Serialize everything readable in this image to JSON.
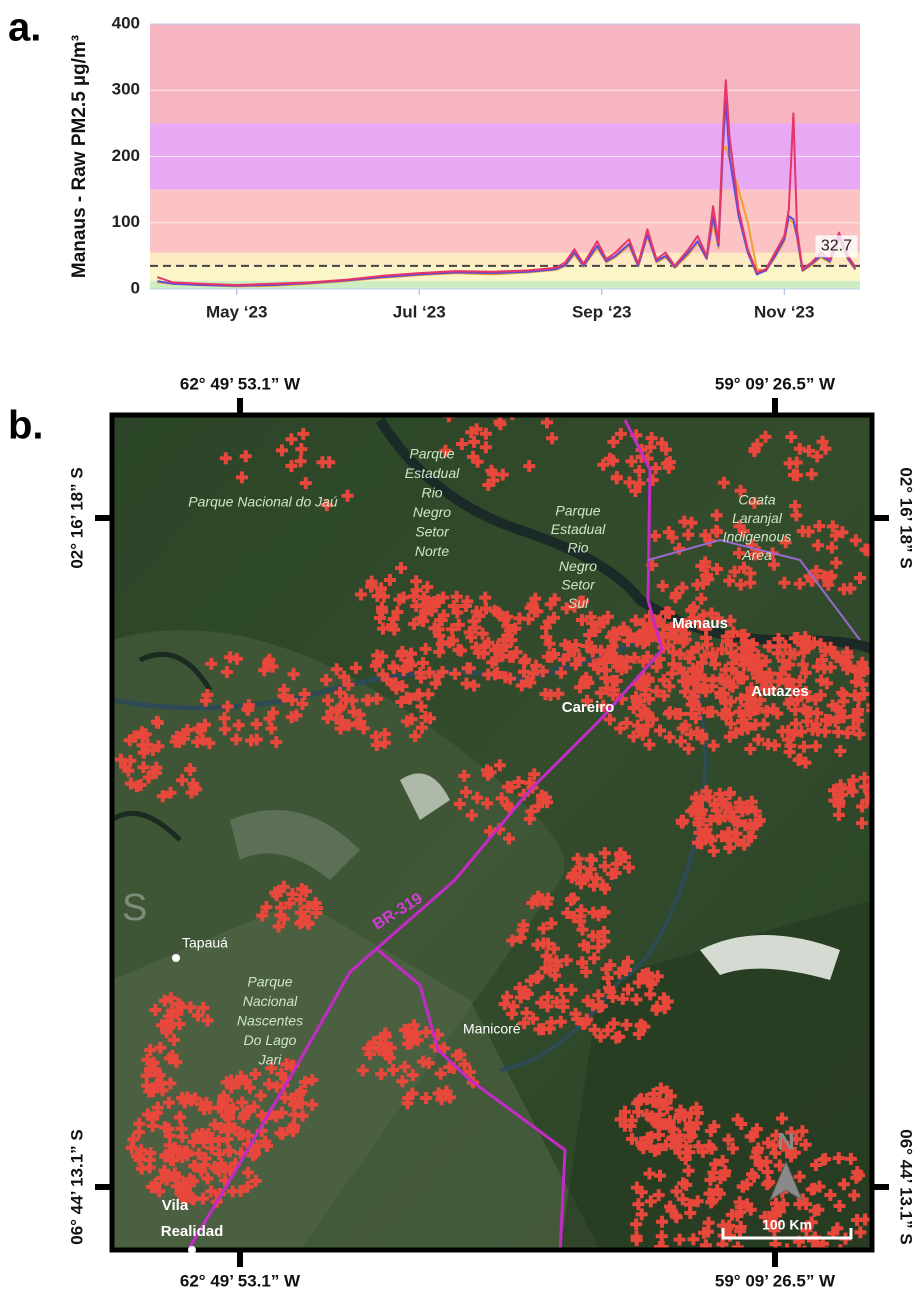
{
  "panel_labels": [
    "a.",
    "b."
  ],
  "chart_data": {
    "type": "line",
    "ylabel": "Manaus - Raw PM2.5 µg/m³",
    "x": [
      4.13,
      4.3,
      4.6,
      5.0,
      5.4,
      5.8,
      6.2,
      6.6,
      7.0,
      7.4,
      7.8,
      8.2,
      8.5,
      8.6,
      8.7,
      8.8,
      8.95,
      9.05,
      9.15,
      9.3,
      9.4,
      9.5,
      9.6,
      9.7,
      9.8,
      9.95,
      10.05,
      10.15,
      10.22,
      10.28,
      10.33,
      10.36,
      10.4,
      10.5,
      10.6,
      10.7,
      10.8,
      10.9,
      11.0,
      11.05,
      11.1,
      11.14,
      11.2,
      11.3,
      11.4,
      11.5,
      11.6,
      11.7,
      11.78
    ],
    "xlim": [
      4.05,
      11.83
    ],
    "xticks": [
      {
        "value": 5,
        "label": "May ‘23"
      },
      {
        "value": 7,
        "label": "Jul ‘23"
      },
      {
        "value": 9,
        "label": "Sep ‘23"
      },
      {
        "value": 11,
        "label": "Nov ‘23"
      }
    ],
    "ylim": [
      0,
      400
    ],
    "yticks": [
      0,
      100,
      200,
      300,
      400
    ],
    "grid": true,
    "bands": [
      {
        "from": 0,
        "to": 12,
        "color": "#cdeec4"
      },
      {
        "from": 12,
        "to": 35,
        "color": "#fbf6c8"
      },
      {
        "from": 35,
        "to": 55,
        "color": "#fde9c2"
      },
      {
        "from": 55,
        "to": 150,
        "color": "#fbc3c3"
      },
      {
        "from": 150,
        "to": 250,
        "color": "#e7a9f3"
      },
      {
        "from": 250,
        "to": 400,
        "color": "#f6b3c0"
      }
    ],
    "reference_line": 35,
    "last_value": 32.7,
    "series": [
      {
        "color": "#f0a030",
        "values": [
          10,
          8,
          6,
          4,
          5,
          8,
          12,
          17,
          21,
          24,
          22,
          25,
          29,
          35,
          52,
          34,
          62,
          40,
          48,
          65,
          34,
          80,
          40,
          48,
          32,
          52,
          70,
          45,
          100,
          62,
          210,
          215,
          195,
          150,
          100,
          30,
          27,
          48,
          72,
          105,
          100,
          78,
          27,
          36,
          48,
          40,
          75,
          44,
          29
        ]
      },
      {
        "color": "#5b4fd6",
        "values": [
          12,
          8,
          6,
          5,
          6,
          9,
          13,
          18,
          22,
          25,
          24,
          26,
          30,
          36,
          55,
          35,
          65,
          42,
          50,
          68,
          35,
          82,
          42,
          50,
          33,
          55,
          72,
          46,
          110,
          65,
          220,
          285,
          200,
          110,
          55,
          22,
          28,
          50,
          75,
          110,
          105,
          80,
          28,
          38,
          50,
          42,
          78,
          46,
          30
        ]
      },
      {
        "color": "#e8336b",
        "values": [
          18,
          10,
          8,
          6,
          8,
          10,
          14,
          20,
          24,
          27,
          26,
          28,
          32,
          40,
          60,
          38,
          72,
          45,
          55,
          75,
          38,
          90,
          45,
          55,
          35,
          60,
          80,
          50,
          125,
          70,
          240,
          315,
          230,
          120,
          60,
          25,
          30,
          55,
          80,
          120,
          265,
          90,
          30,
          40,
          55,
          45,
          85,
          50,
          32.7
        ]
      }
    ]
  },
  "map": {
    "coordinates": {
      "west": "62° 49’ 53.1” W",
      "east": "59° 09’ 26.5” W",
      "north": "02° 16’ 18” S",
      "south": "06° 44’ 13.1” S"
    },
    "places": {
      "jau": "Parque Nacional do Jaú",
      "rio_negro_norte": [
        "Parque",
        "Estadual",
        "Rio",
        "Negro",
        "Setor",
        "Norte"
      ],
      "rio_negro_sul": [
        "Parque",
        "Estadual",
        "Rio",
        "Negro",
        "Setor",
        "Sul"
      ],
      "manaus": "Manaus",
      "careiro": "Careiro",
      "autazes": "Autazes",
      "coata": [
        "Coata",
        "Laranjal",
        "Indigenous",
        "Area"
      ],
      "road": "BR-319",
      "tapaua": "Tapauá",
      "nascentes": [
        "Parque",
        "Nacional",
        "Nascentes",
        "Do Lago",
        "Jari"
      ],
      "manicore": "Manicoré",
      "vila": [
        "Vila",
        "Realidad"
      ]
    },
    "north_arrow": "N",
    "scale": "100 Km"
  }
}
